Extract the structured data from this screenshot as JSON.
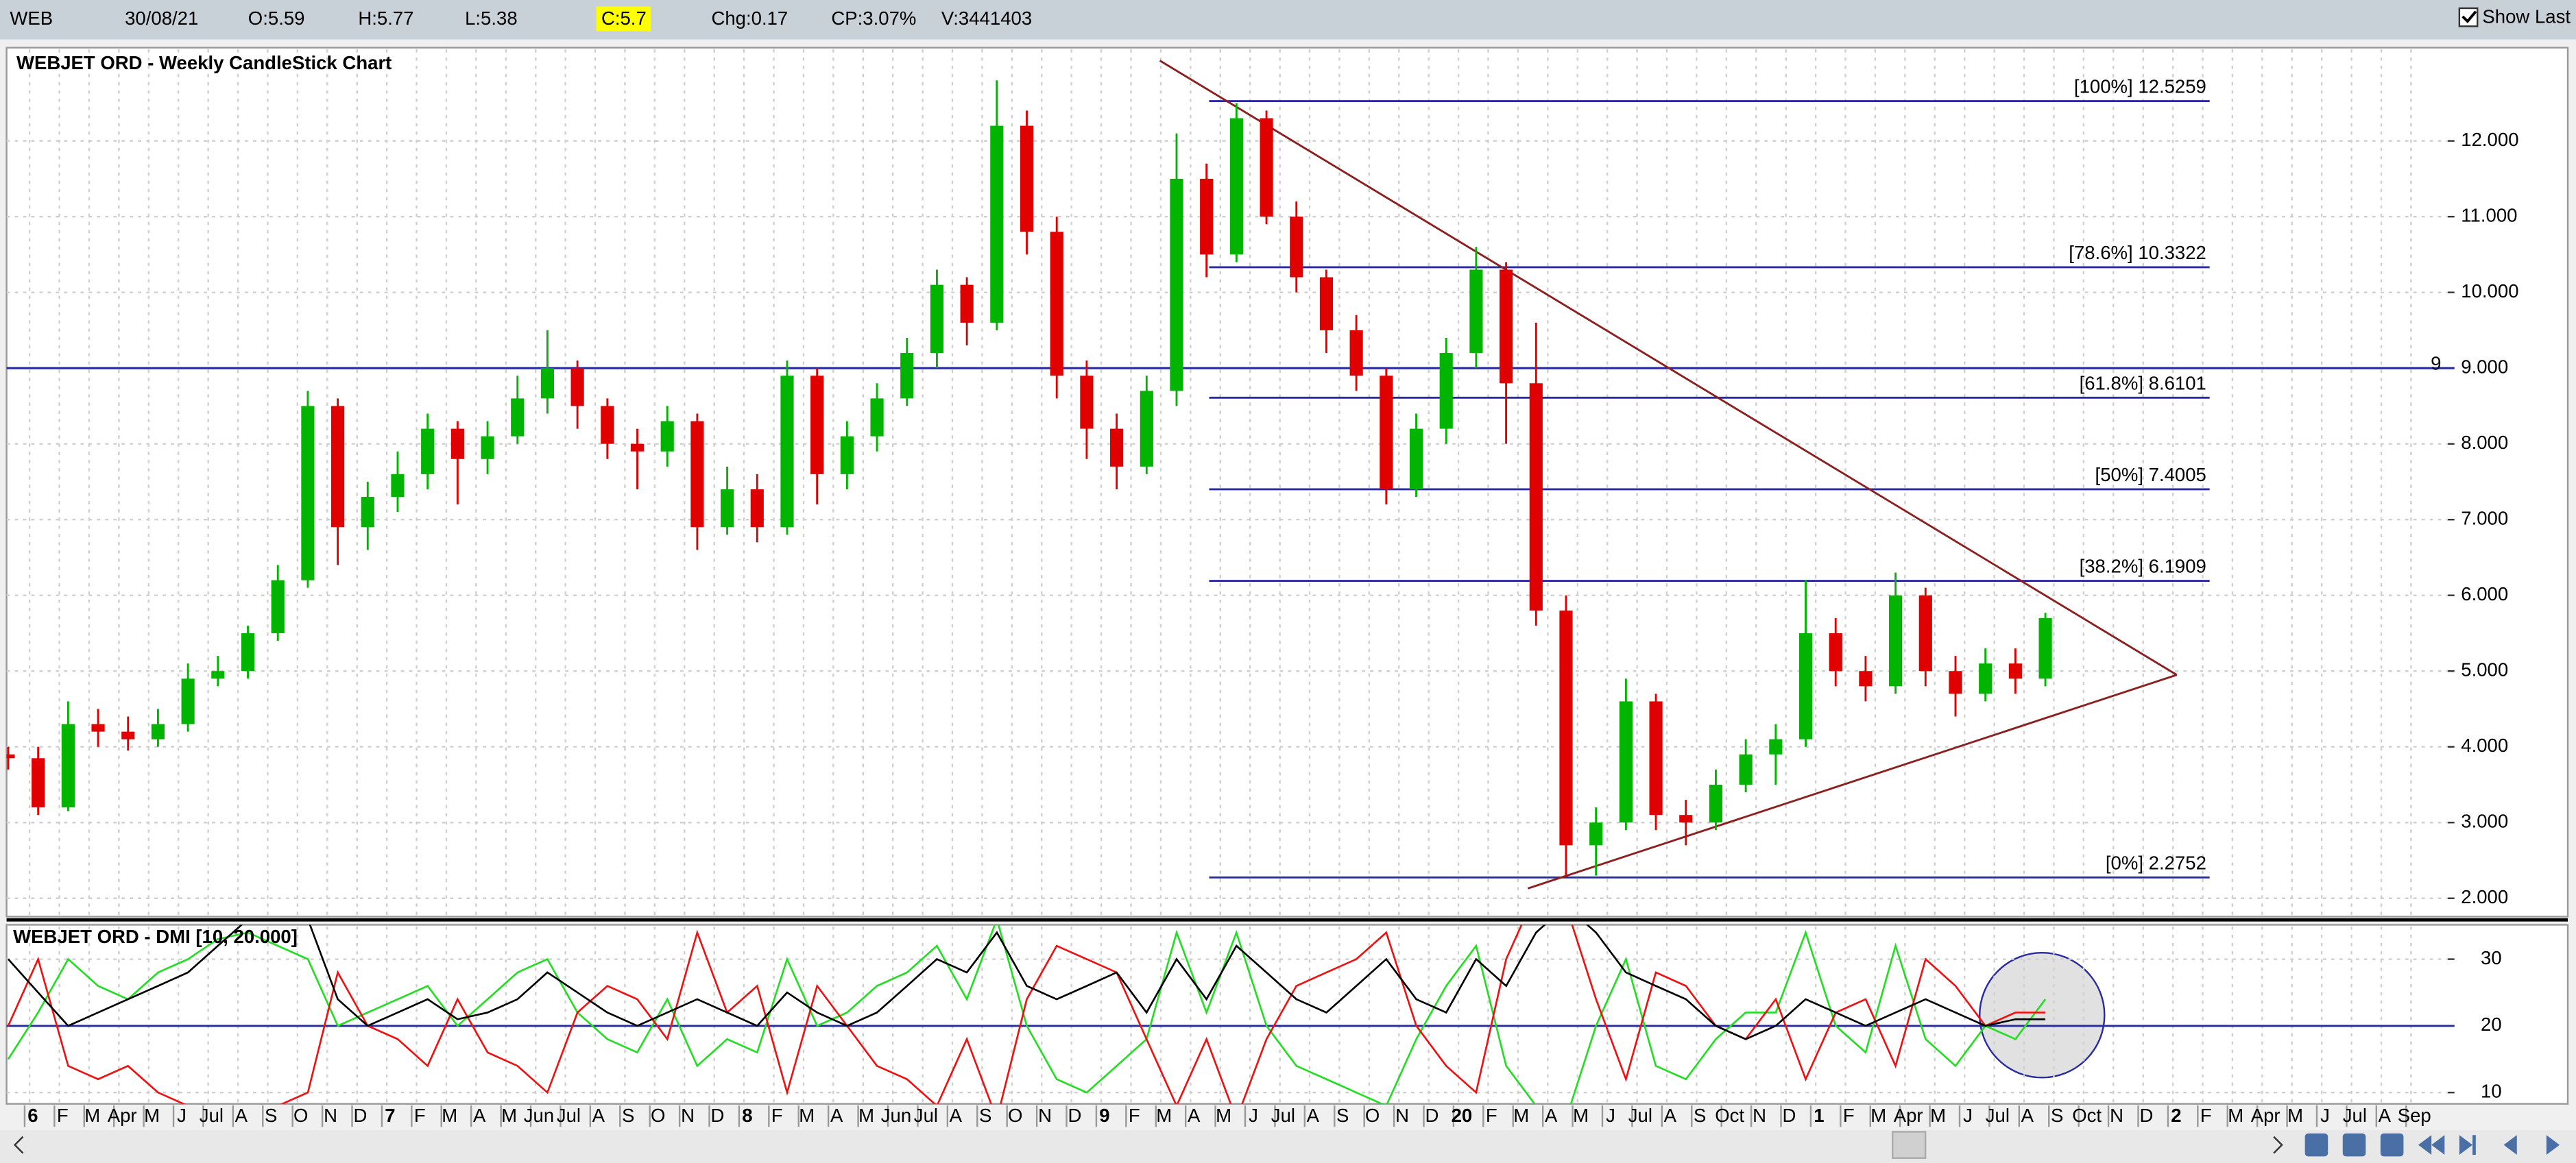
{
  "header": {
    "items": [
      "WEB",
      "30/08/21",
      "O:5.59",
      "H:5.77",
      "L:5.38",
      "C:5.7",
      "Chg:0.17",
      "CP:3.07%",
      "V:3441403"
    ],
    "show_last": "Show Last"
  },
  "time_axis": {
    "labels": [
      "6",
      "F",
      "M",
      "Apr",
      "M",
      "J",
      "Jul",
      "A",
      "S",
      "O",
      "N",
      "D",
      "7",
      "F",
      "M",
      "A",
      "M",
      "Jun",
      "Jul",
      "A",
      "S",
      "O",
      "N",
      "D",
      "8",
      "F",
      "M",
      "A",
      "M",
      "Jun",
      "Jul",
      "A",
      "S",
      "O",
      "N",
      "D",
      "9",
      "F",
      "M",
      "A",
      "M",
      "J",
      "Jul",
      "A",
      "S",
      "O",
      "N",
      "D",
      "20",
      "F",
      "M",
      "A",
      "M",
      "J",
      "Jul",
      "A",
      "S",
      "Oct",
      "N",
      "D",
      "1",
      "F",
      "M",
      "Apr",
      "M",
      "J",
      "Jul",
      "A",
      "S",
      "Oct",
      "N",
      "D",
      "2",
      "F",
      "M",
      "Apr",
      "M",
      "J",
      "Jul",
      "A",
      "Sep"
    ]
  },
  "chart_data": [
    {
      "type": "candlestick",
      "title": "WEBJET ORD - Weekly CandleStick Chart",
      "open": [
        3.9,
        3.85,
        3.2,
        4.3,
        4.2,
        4.1,
        4.3,
        4.9,
        5.0,
        5.5,
        6.2,
        8.5,
        6.9,
        7.3,
        7.6,
        8.2,
        7.8,
        8.1,
        8.6,
        9.0,
        8.5,
        8.0,
        7.9,
        8.3,
        6.9,
        7.4,
        6.9,
        8.9,
        7.6,
        8.1,
        8.6,
        9.2,
        10.1,
        9.6,
        12.2,
        10.8,
        8.9,
        8.2,
        7.7,
        8.7,
        11.5,
        10.5,
        12.3,
        11.0,
        10.2,
        9.5,
        8.9,
        7.4,
        8.2,
        9.2,
        10.3,
        8.8,
        5.8,
        2.7,
        3.0,
        4.6,
        3.1,
        3.0,
        3.5,
        3.9,
        4.1,
        5.5,
        5.0,
        4.8,
        6.0,
        5.0,
        4.7,
        5.1,
        4.9
      ],
      "high": [
        4.0,
        4.0,
        4.6,
        4.5,
        4.4,
        4.5,
        5.1,
        5.2,
        5.6,
        6.4,
        8.7,
        8.6,
        7.5,
        7.9,
        8.4,
        8.3,
        8.3,
        8.9,
        9.5,
        9.1,
        8.6,
        8.2,
        8.5,
        8.4,
        7.7,
        7.6,
        9.1,
        9.0,
        8.3,
        8.8,
        9.4,
        10.3,
        10.2,
        12.8,
        12.4,
        11.0,
        9.1,
        8.4,
        8.9,
        12.1,
        11.7,
        12.5,
        12.4,
        11.2,
        10.3,
        9.7,
        9.0,
        8.4,
        9.4,
        10.6,
        10.4,
        9.6,
        6.0,
        3.2,
        4.9,
        4.7,
        3.3,
        3.7,
        4.1,
        4.3,
        6.2,
        5.7,
        5.2,
        6.3,
        6.1,
        5.2,
        5.3,
        5.3,
        5.77
      ],
      "low": [
        3.7,
        3.1,
        3.15,
        4.0,
        3.95,
        4.0,
        4.2,
        4.8,
        4.9,
        5.4,
        6.1,
        6.4,
        6.6,
        7.1,
        7.4,
        7.2,
        7.6,
        8.0,
        8.4,
        8.2,
        7.8,
        7.4,
        7.7,
        6.6,
        6.8,
        6.7,
        6.8,
        7.2,
        7.4,
        7.9,
        8.5,
        9.0,
        9.3,
        9.5,
        10.5,
        8.6,
        7.8,
        7.4,
        7.6,
        8.5,
        10.2,
        10.4,
        10.9,
        10.0,
        9.2,
        8.7,
        7.2,
        7.3,
        8.0,
        9.0,
        8.0,
        5.6,
        2.3,
        2.3,
        2.9,
        2.9,
        2.7,
        2.9,
        3.4,
        3.5,
        4.0,
        4.8,
        4.6,
        4.7,
        4.8,
        4.4,
        4.6,
        4.7,
        4.8
      ],
      "close": [
        3.85,
        3.2,
        4.3,
        4.2,
        4.1,
        4.3,
        4.9,
        5.0,
        5.5,
        6.2,
        8.5,
        6.9,
        7.3,
        7.6,
        8.2,
        7.8,
        8.1,
        8.6,
        9.0,
        8.5,
        8.0,
        7.9,
        8.3,
        6.9,
        7.4,
        6.9,
        8.9,
        7.6,
        8.1,
        8.6,
        9.2,
        10.1,
        9.6,
        12.2,
        10.8,
        8.9,
        8.2,
        7.7,
        8.7,
        11.5,
        10.5,
        12.3,
        11.0,
        10.2,
        9.5,
        8.9,
        7.4,
        8.2,
        9.2,
        10.3,
        8.8,
        5.8,
        2.7,
        3.0,
        4.6,
        3.1,
        3.0,
        3.5,
        3.9,
        4.1,
        5.5,
        5.0,
        4.8,
        6.0,
        5.0,
        4.7,
        5.1,
        4.9,
        5.7
      ],
      "up_color": "#00b400",
      "down_color": "#e00000",
      "ylim": [
        1.78,
        13.21
      ],
      "yticks": [
        {
          "value": 2,
          "label": "2.000"
        },
        {
          "value": 3,
          "label": "3.000"
        },
        {
          "value": 4,
          "label": "4.000"
        },
        {
          "value": 5,
          "label": "5.000"
        },
        {
          "value": 6,
          "label": "6.000"
        },
        {
          "value": 7,
          "label": "7.000"
        },
        {
          "value": 8,
          "label": "8.000"
        },
        {
          "value": 9,
          "label": "9.000"
        },
        {
          "value": 10,
          "label": "10.000"
        },
        {
          "value": 11,
          "label": "11.000"
        },
        {
          "value": 12,
          "label": "12.000"
        }
      ],
      "grid": true,
      "hline": 9,
      "hline_color": "#2a2aa0",
      "levels": [
        {
          "value": 12.5259,
          "label": "[100%] 12.5259"
        },
        {
          "value": 10.3322,
          "label": "[78.6%] 10.3322"
        },
        {
          "value": 8.6101,
          "label": "[61.8%] 8.6101"
        },
        {
          "value": 7.4005,
          "label": "[50%] 7.4005"
        },
        {
          "value": 6.1909,
          "label": "[38.2%] 6.1909"
        },
        {
          "value": 2.2752,
          "label": "[0%] 2.2752"
        }
      ],
      "level_color": "#2a2aa0",
      "trendlines": [
        {
          "start": 13.06,
          "end": 4.95
        },
        {
          "start": 2.13,
          "end": 4.95
        }
      ],
      "trend_color": "#8b2020"
    },
    {
      "type": "line",
      "title": "WEBJET ORD - DMI [10, 20.000]",
      "series": [
        {
          "color": "#22dd22",
          "values": [
            15,
            22,
            30,
            26,
            24,
            28,
            30,
            33,
            34,
            32,
            30,
            20,
            22,
            24,
            26,
            20,
            24,
            28,
            30,
            22,
            18,
            16,
            24,
            14,
            18,
            16,
            30,
            20,
            22,
            26,
            28,
            32,
            24,
            36,
            20,
            12,
            10,
            14,
            18,
            34,
            22,
            34,
            20,
            14,
            12,
            10,
            8,
            18,
            26,
            32,
            14,
            8,
            6,
            20,
            30,
            14,
            12,
            18,
            22,
            22,
            34,
            20,
            16,
            32,
            18,
            14,
            20,
            18,
            24
          ]
        },
        {
          "color": "#ee1111",
          "values": [
            20,
            30,
            14,
            12,
            14,
            10,
            8,
            6,
            6,
            8,
            10,
            28,
            20,
            18,
            14,
            24,
            16,
            14,
            10,
            22,
            26,
            24,
            18,
            34,
            22,
            26,
            10,
            26,
            20,
            14,
            12,
            8,
            18,
            6,
            24,
            32,
            30,
            28,
            18,
            8,
            18,
            6,
            18,
            26,
            28,
            30,
            34,
            20,
            14,
            10,
            30,
            40,
            38,
            24,
            12,
            28,
            26,
            20,
            18,
            24,
            12,
            22,
            24,
            14,
            30,
            26,
            20,
            22,
            22
          ]
        },
        {
          "color": "#000000",
          "values": [
            30,
            25,
            20,
            22,
            24,
            26,
            28,
            32,
            36,
            38,
            36,
            24,
            20,
            22,
            24,
            21,
            22,
            24,
            28,
            25,
            22,
            20,
            22,
            24,
            22,
            20,
            25,
            22,
            20,
            22,
            26,
            30,
            28,
            34,
            26,
            24,
            26,
            28,
            22,
            30,
            24,
            32,
            28,
            24,
            22,
            26,
            30,
            24,
            22,
            30,
            26,
            34,
            38,
            34,
            28,
            26,
            24,
            20,
            18,
            20,
            24,
            22,
            20,
            22,
            24,
            22,
            20,
            21,
            21
          ]
        }
      ],
      "ylim": [
        8.3,
        35.4
      ],
      "yticks": [
        10,
        20,
        30
      ],
      "grid": true,
      "level": 20,
      "level_color": "#2a2aa0"
    }
  ]
}
